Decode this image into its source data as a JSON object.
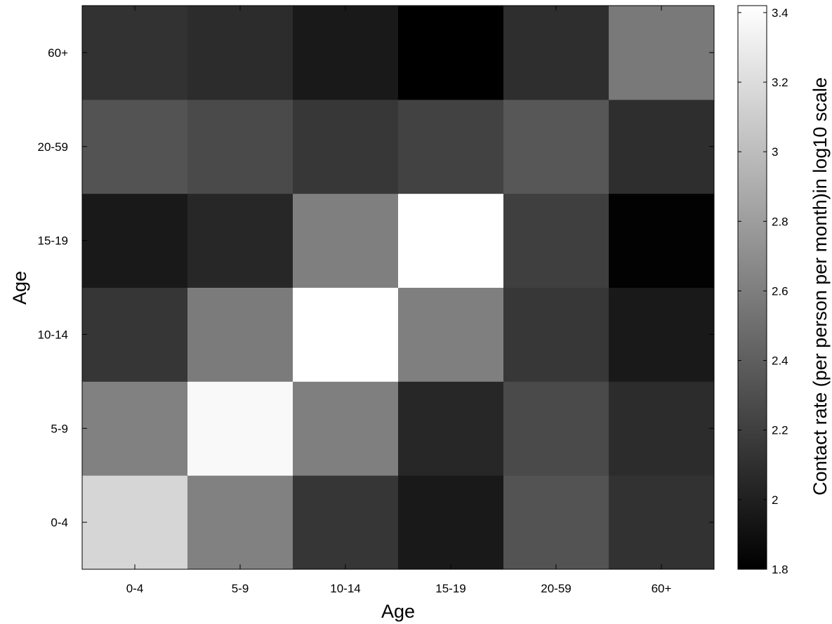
{
  "chart_data": {
    "type": "heatmap",
    "xlabel": "Age",
    "ylabel": "Age",
    "x_categories": [
      "0-4",
      "5-9",
      "10-14",
      "15-19",
      "20-59",
      "60+"
    ],
    "y_categories": [
      "0-4",
      "5-9",
      "10-14",
      "15-19",
      "20-59",
      "60+"
    ],
    "values": [
      [
        3.16,
        2.62,
        2.14,
        1.96,
        2.33,
        2.12
      ],
      [
        2.62,
        3.38,
        2.61,
        2.05,
        2.27,
        2.08
      ],
      [
        2.14,
        2.58,
        3.44,
        2.61,
        2.15,
        1.96
      ],
      [
        1.96,
        2.05,
        2.61,
        3.44,
        2.2,
        1.81
      ],
      [
        2.33,
        2.27,
        2.15,
        2.22,
        2.35,
        2.09
      ],
      [
        2.12,
        2.08,
        1.96,
        1.8,
        2.09,
        2.57
      ]
    ],
    "colorbar": {
      "label": "Contact rate (per person per month)in log10 scale",
      "min": 1.8,
      "max": 3.42,
      "ticks": [
        "1.8",
        "2",
        "2.2",
        "2.4",
        "2.6",
        "2.8",
        "3",
        "3.2",
        "3.4"
      ],
      "colormap": "gray"
    },
    "grid": false
  }
}
